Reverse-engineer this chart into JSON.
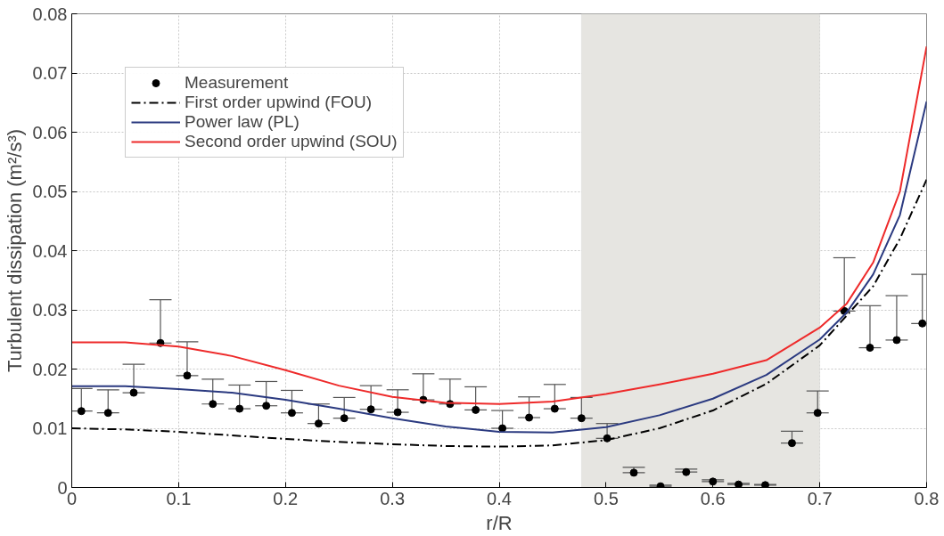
{
  "chart_data": {
    "type": "scatter",
    "xlabel": "r/R",
    "ylabel": "Turbulent dissipation (m²/s³)",
    "xlim": [
      0,
      0.8
    ],
    "ylim": [
      0,
      0.08
    ],
    "xticks": [
      0,
      0.1,
      0.2,
      0.3,
      0.4,
      0.5,
      0.6,
      0.7,
      0.8
    ],
    "yticks": [
      0,
      0.01,
      0.02,
      0.03,
      0.04,
      0.05,
      0.06,
      0.07,
      0.08
    ],
    "grid": true,
    "legend": "top left",
    "bands": [
      {
        "axis": "x",
        "from": 0.477,
        "to": 0.7,
        "label": null,
        "color": "#e6e5e1"
      }
    ],
    "series": [
      {
        "name": "Measurement",
        "marker": "circle",
        "color": "#000000",
        "x": [
          0.009,
          0.034,
          0.058,
          0.083,
          0.108,
          0.132,
          0.157,
          0.182,
          0.206,
          0.231,
          0.255,
          0.28,
          0.305,
          0.329,
          0.354,
          0.378,
          0.403,
          0.428,
          0.452,
          0.477,
          0.501,
          0.526,
          0.551,
          0.575,
          0.6,
          0.624,
          0.649,
          0.674,
          0.698,
          0.723,
          0.747,
          0.772,
          0.796
        ],
        "values": [
          0.0129,
          0.0126,
          0.016,
          0.0244,
          0.0189,
          0.0141,
          0.0133,
          0.0138,
          0.0126,
          0.0108,
          0.0117,
          0.0132,
          0.0127,
          0.0148,
          0.0141,
          0.0131,
          0.01,
          0.0118,
          0.0133,
          0.0117,
          0.0083,
          0.0025,
          0.0002,
          0.0026,
          0.001,
          0.0005,
          0.0004,
          0.0075,
          0.0126,
          0.0298,
          0.0236,
          0.0249,
          0.0277
        ],
        "errors": [
          [
            0.0129,
            0.0167
          ],
          [
            0.0126,
            0.0165
          ],
          [
            0.016,
            0.0208
          ],
          [
            0.0244,
            0.0317
          ],
          [
            0.0189,
            0.0246
          ],
          [
            0.0141,
            0.0183
          ],
          [
            0.0133,
            0.0173
          ],
          [
            0.0138,
            0.0179
          ],
          [
            0.0126,
            0.0164
          ],
          [
            0.0108,
            0.0141
          ],
          [
            0.0117,
            0.0152
          ],
          [
            0.0132,
            0.0172
          ],
          [
            0.0127,
            0.0165
          ],
          [
            0.0148,
            0.0192
          ],
          [
            0.0141,
            0.0183
          ],
          [
            0.0131,
            0.017
          ],
          [
            0.01,
            0.013
          ],
          [
            0.0118,
            0.0153
          ],
          [
            0.0133,
            0.0174
          ],
          [
            0.0117,
            0.0152
          ],
          [
            0.0083,
            0.0108
          ],
          [
            0.0025,
            0.0034
          ],
          [
            0.0002,
            0.0004
          ],
          [
            0.0026,
            0.0031
          ],
          [
            0.001,
            0.0013
          ],
          [
            0.0005,
            0.0007
          ],
          [
            0.0004,
            0.0005
          ],
          [
            0.0075,
            0.0095
          ],
          [
            0.0126,
            0.0163
          ],
          [
            0.0298,
            0.0388
          ],
          [
            0.0236,
            0.0307
          ],
          [
            0.0249,
            0.0324
          ],
          [
            0.0277,
            0.036
          ]
        ]
      },
      {
        "name": "First order upwind (FOU)",
        "type": "line",
        "line_style": "dashdot",
        "color": "#000000",
        "x": [
          0,
          0.05,
          0.1,
          0.15,
          0.2,
          0.25,
          0.3,
          0.35,
          0.4,
          0.45,
          0.5,
          0.55,
          0.6,
          0.65,
          0.7,
          0.725,
          0.75,
          0.775,
          0.8
        ],
        "values": [
          0.01,
          0.0098,
          0.0094,
          0.0088,
          0.0082,
          0.0077,
          0.0073,
          0.007,
          0.0069,
          0.0071,
          0.008,
          0.01,
          0.013,
          0.0175,
          0.024,
          0.029,
          0.034,
          0.042,
          0.052
        ]
      },
      {
        "name": "Power law (PL)",
        "type": "line",
        "line_style": "solid",
        "color": "#2b3a80",
        "x": [
          0,
          0.05,
          0.1,
          0.15,
          0.2,
          0.25,
          0.3,
          0.35,
          0.4,
          0.45,
          0.5,
          0.55,
          0.6,
          0.65,
          0.7,
          0.725,
          0.75,
          0.775,
          0.8
        ],
        "values": [
          0.0171,
          0.0171,
          0.0166,
          0.016,
          0.0148,
          0.0133,
          0.0117,
          0.0103,
          0.0094,
          0.0093,
          0.0102,
          0.0122,
          0.015,
          0.019,
          0.025,
          0.0295,
          0.036,
          0.046,
          0.0652
        ]
      },
      {
        "name": "Second order upwind (SOU)",
        "type": "line",
        "line_style": "solid",
        "color": "#ee2a2a",
        "x": [
          0,
          0.05,
          0.1,
          0.15,
          0.2,
          0.25,
          0.3,
          0.35,
          0.4,
          0.45,
          0.5,
          0.55,
          0.6,
          0.65,
          0.7,
          0.725,
          0.75,
          0.775,
          0.8
        ],
        "values": [
          0.0245,
          0.0245,
          0.0238,
          0.0222,
          0.0198,
          0.0172,
          0.0153,
          0.0143,
          0.0141,
          0.0145,
          0.0158,
          0.0174,
          0.0192,
          0.0215,
          0.027,
          0.031,
          0.038,
          0.05,
          0.0745
        ]
      }
    ]
  }
}
